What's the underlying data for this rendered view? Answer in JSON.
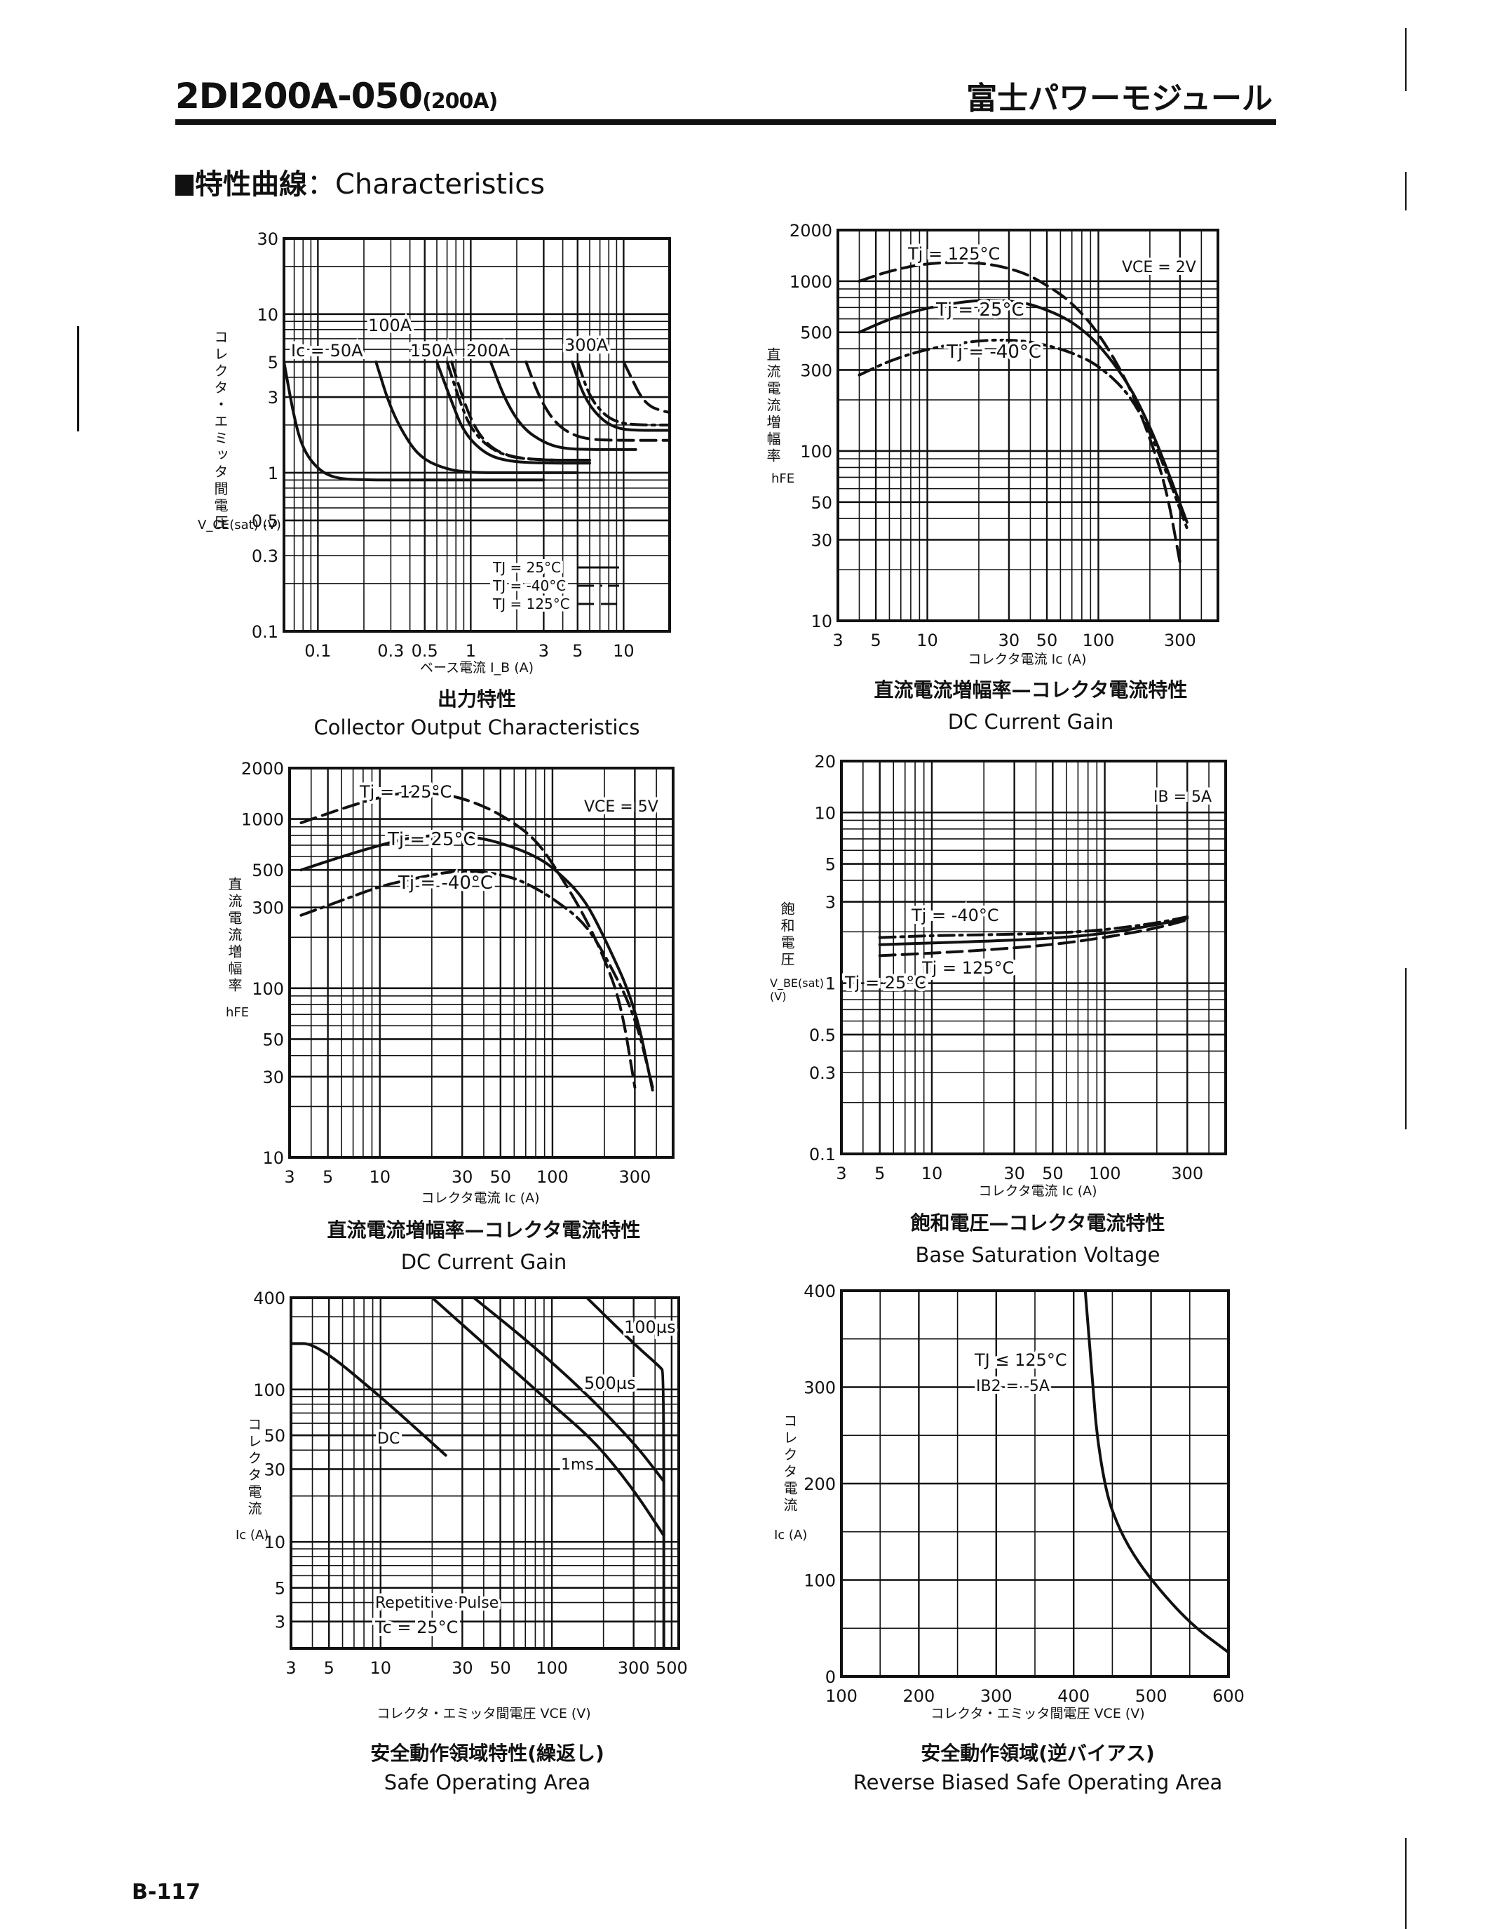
{
  "header": {
    "model": "2DI200A-050",
    "rating": "(200A)",
    "brand": "富士パワーモジュール"
  },
  "section": {
    "jp": "特性曲線",
    "sep": "：",
    "en": "Characteristics"
  },
  "footer": {
    "page": "B-117"
  },
  "chart_data": [
    {
      "id": "collector-output",
      "type": "line",
      "title_jp": "出力特性",
      "title": "Collector Output Characteristics",
      "xlabel": "ベース電流 I_B (A)",
      "ylabel_jp": "コレクタ・エミッタ間電圧",
      "ylabel": "V_CE(sat) (V)",
      "xscale": "log",
      "yscale": "log",
      "xlim": [
        0.06,
        20
      ],
      "ylim": [
        0.1,
        30
      ],
      "xticks": [
        0.1,
        0.3,
        0.5,
        1,
        3,
        5,
        10
      ],
      "xtick_labels": [
        "0.1",
        "0.3",
        "0.5",
        "1",
        "3",
        "5",
        "10"
      ],
      "yticks": [
        0.1,
        0.3,
        0.5,
        1,
        3,
        5,
        10,
        30
      ],
      "ytick_labels": [
        "0.1",
        "0.3",
        "0.5",
        "1",
        "3",
        "5",
        "10",
        "30"
      ],
      "legend": [
        {
          "label": "TJ = 25°C",
          "style": "solid"
        },
        {
          "label": "TJ = -40°C",
          "style": "dashdot"
        },
        {
          "label": "TJ = 125°C",
          "style": "dashed"
        }
      ],
      "annotations": [
        "Ic = 50A",
        "100A",
        "150A",
        "200A",
        "300A"
      ],
      "series": [
        {
          "name": "Ic=50A Tj=25°C",
          "style": "solid",
          "x": [
            0.06,
            0.07,
            0.08,
            0.1,
            0.13,
            0.2,
            0.5,
            1,
            3
          ],
          "y": [
            5,
            2.2,
            1.4,
            1.05,
            0.92,
            0.9,
            0.9,
            0.9,
            0.9
          ]
        },
        {
          "name": "Ic=100A Tj=25°C",
          "style": "solid",
          "x": [
            0.24,
            0.3,
            0.4,
            0.5,
            0.7,
            1,
            2,
            5
          ],
          "y": [
            5,
            2.5,
            1.5,
            1.2,
            1.05,
            1.0,
            1.0,
            1.0
          ]
        },
        {
          "name": "Ic=150A Tj=25°C",
          "style": "solid",
          "x": [
            0.6,
            0.75,
            0.9,
            1.2,
            1.6,
            2.5,
            6
          ],
          "y": [
            5,
            2.8,
            1.8,
            1.35,
            1.2,
            1.15,
            1.15
          ]
        },
        {
          "name": "Ic=150A Tj=-40°C",
          "style": "dashdot",
          "x": [
            0.7,
            0.85,
            1.0,
            1.3,
            1.8,
            3,
            6
          ],
          "y": [
            5,
            2.8,
            1.9,
            1.45,
            1.25,
            1.2,
            1.2
          ]
        },
        {
          "name": "Ic=150A Tj=125°C",
          "style": "dashed",
          "x": [
            0.75,
            0.9,
            1.1,
            1.4,
            1.9,
            3,
            6
          ],
          "y": [
            5,
            2.8,
            1.8,
            1.4,
            1.25,
            1.2,
            1.2
          ]
        },
        {
          "name": "Ic=200A Tj=25°C",
          "style": "solid",
          "x": [
            1.35,
            1.7,
            2.2,
            3,
            4,
            6,
            12
          ],
          "y": [
            5,
            2.8,
            1.9,
            1.55,
            1.42,
            1.4,
            1.4
          ]
        },
        {
          "name": "Ic=200A Tj=125°C",
          "style": "dashed",
          "x": [
            2.3,
            2.8,
            3.5,
            4.5,
            6,
            9,
            20
          ],
          "y": [
            5,
            3.0,
            2.1,
            1.75,
            1.62,
            1.6,
            1.6
          ]
        },
        {
          "name": "Ic=300A Tj=25°C",
          "style": "solid",
          "x": [
            4.6,
            5.5,
            7,
            9,
            12,
            20
          ],
          "y": [
            5,
            3.0,
            2.2,
            1.9,
            1.85,
            1.85
          ]
        },
        {
          "name": "Ic=300A Tj=-40°C",
          "style": "dashdot",
          "x": [
            5.0,
            6.0,
            7.5,
            9.5,
            13,
            20
          ],
          "y": [
            5,
            3.0,
            2.3,
            2.05,
            2.0,
            2.0
          ]
        },
        {
          "name": "Ic=300A Tj=125°C",
          "style": "dashed",
          "x": [
            10,
            11.5,
            13,
            15,
            18,
            20
          ],
          "y": [
            5,
            3.8,
            3.0,
            2.6,
            2.45,
            2.4
          ]
        }
      ]
    },
    {
      "id": "dc-current-gain-2v",
      "type": "line",
      "title_jp": "直流電流増幅率—コレクタ電流特性",
      "title": "DC Current Gain",
      "xlabel": "コレクタ電流 Ic (A)",
      "ylabel_jp": "直流電流増幅率",
      "ylabel": "hFE",
      "condition": "VCE = 2V",
      "xscale": "log",
      "yscale": "log",
      "xlim": [
        3,
        500
      ],
      "ylim": [
        10,
        2000
      ],
      "xticks": [
        3,
        5,
        10,
        30,
        50,
        100,
        300
      ],
      "xtick_labels": [
        "3",
        "5",
        "10",
        "30",
        "50",
        "100",
        "300"
      ],
      "yticks": [
        10,
        30,
        50,
        100,
        300,
        500,
        1000,
        2000
      ],
      "ytick_labels": [
        "10",
        "30",
        "50",
        "100",
        "300",
        "500",
        "1000",
        "2000"
      ],
      "series": [
        {
          "name": "Tj = 125°C",
          "style": "dashed",
          "x": [
            4,
            6,
            10,
            20,
            35,
            50,
            70,
            100,
            150,
            200,
            250,
            300
          ],
          "y": [
            1000,
            1150,
            1280,
            1300,
            1150,
            950,
            750,
            500,
            250,
            120,
            60,
            22
          ]
        },
        {
          "name": "Tj = 25°C",
          "style": "solid",
          "x": [
            4,
            6,
            10,
            20,
            35,
            50,
            70,
            100,
            150,
            200,
            250,
            330
          ],
          "y": [
            500,
            600,
            700,
            780,
            760,
            680,
            580,
            430,
            250,
            140,
            80,
            38
          ]
        },
        {
          "name": "Tj = -40°C",
          "style": "dashdot",
          "x": [
            4,
            6,
            10,
            20,
            35,
            50,
            70,
            100,
            150,
            200,
            250,
            330
          ],
          "y": [
            280,
            340,
            400,
            450,
            450,
            420,
            380,
            320,
            220,
            130,
            75,
            35
          ]
        }
      ]
    },
    {
      "id": "dc-current-gain-5v",
      "type": "line",
      "title_jp": "直流電流増幅率—コレクタ電流特性",
      "title": "DC Current Gain",
      "xlabel": "コレクタ電流 Ic (A)",
      "ylabel_jp": "直流電流増幅率",
      "ylabel": "hFE",
      "condition": "VCE = 5V",
      "xscale": "log",
      "yscale": "log",
      "xlim": [
        3,
        500
      ],
      "ylim": [
        10,
        2000
      ],
      "xticks": [
        3,
        5,
        10,
        30,
        50,
        100,
        300
      ],
      "xtick_labels": [
        "3",
        "5",
        "10",
        "30",
        "50",
        "100",
        "300"
      ],
      "yticks": [
        10,
        30,
        50,
        100,
        300,
        500,
        1000,
        2000
      ],
      "ytick_labels": [
        "10",
        "30",
        "50",
        "100",
        "300",
        "500",
        "1000",
        "2000"
      ],
      "series": [
        {
          "name": "Tj = 125°C",
          "style": "dashed",
          "x": [
            3.5,
            6,
            10,
            15,
            25,
            40,
            60,
            80,
            100,
            150,
            200,
            250,
            300
          ],
          "y": [
            950,
            1150,
            1350,
            1450,
            1400,
            1200,
            950,
            750,
            550,
            280,
            150,
            80,
            26
          ]
        },
        {
          "name": "Tj = 25°C",
          "style": "solid",
          "x": [
            3.5,
            6,
            10,
            15,
            25,
            40,
            60,
            80,
            100,
            150,
            200,
            300,
            380
          ],
          "y": [
            500,
            600,
            700,
            780,
            810,
            770,
            680,
            600,
            520,
            350,
            200,
            80,
            25
          ]
        },
        {
          "name": "Tj = -40°C",
          "style": "dashdot",
          "x": [
            3.5,
            6,
            10,
            15,
            25,
            40,
            60,
            80,
            100,
            150,
            200,
            300,
            380
          ],
          "y": [
            270,
            330,
            400,
            440,
            490,
            490,
            450,
            390,
            340,
            250,
            160,
            70,
            26
          ]
        }
      ]
    },
    {
      "id": "base-saturation-voltage",
      "type": "line",
      "title_jp": "飽和電圧—コレクタ電流特性",
      "title": "Base Saturation Voltage",
      "xlabel": "コレクタ電流 Ic (A)",
      "ylabel_jp": "飽和電圧",
      "ylabel": "V_BE(sat) (V)",
      "condition": "IB = 5A",
      "xscale": "log",
      "yscale": "log",
      "xlim": [
        3,
        500
      ],
      "ylim": [
        0.1,
        20
      ],
      "xticks": [
        3,
        5,
        10,
        30,
        50,
        100,
        300
      ],
      "xtick_labels": [
        "3",
        "5",
        "10",
        "30",
        "50",
        "100",
        "300"
      ],
      "yticks": [
        0.1,
        0.3,
        0.5,
        1,
        3,
        5,
        10,
        20
      ],
      "ytick_labels": [
        "0.1",
        "0.3",
        "0.5",
        "1",
        "3",
        "5",
        "10",
        "20"
      ],
      "series": [
        {
          "name": "Tj = -40°C",
          "style": "dashdot",
          "x": [
            5,
            10,
            20,
            50,
            100,
            200,
            300
          ],
          "y": [
            1.85,
            1.9,
            1.92,
            1.96,
            2.05,
            2.25,
            2.45
          ]
        },
        {
          "name": "Tj = 25°C",
          "style": "solid",
          "x": [
            5,
            10,
            20,
            50,
            100,
            200,
            300
          ],
          "y": [
            1.68,
            1.72,
            1.76,
            1.83,
            1.95,
            2.2,
            2.4
          ]
        },
        {
          "name": "Tj = 125°C",
          "style": "dashed",
          "x": [
            5,
            10,
            20,
            50,
            100,
            200,
            300
          ],
          "y": [
            1.45,
            1.5,
            1.56,
            1.68,
            1.85,
            2.1,
            2.35
          ]
        }
      ]
    },
    {
      "id": "safe-operating-area",
      "type": "line",
      "title_jp": "安全動作領域特性(繰返し)",
      "title": "Safe Operating Area",
      "xlabel": "コレクタ・エミッタ間電圧 VCE (V)",
      "ylabel_jp": "コレクタ電流",
      "ylabel": "Ic (A)",
      "conditions": [
        "Repetitive Pulse",
        "Tc = 25°C"
      ],
      "xscale": "log",
      "yscale": "log",
      "xlim": [
        3,
        550
      ],
      "ylim": [
        2,
        400
      ],
      "xticks": [
        3,
        5,
        10,
        30,
        50,
        100,
        300,
        500
      ],
      "xtick_labels": [
        "3",
        "5",
        "10",
        "30",
        "50",
        "100",
        "300",
        "500"
      ],
      "yticks": [
        3,
        5,
        10,
        30,
        50,
        100,
        400
      ],
      "ytick_labels": [
        "3",
        "5",
        "10",
        "30",
        "50",
        "100",
        "400"
      ],
      "series": [
        {
          "name": "DC",
          "style": "solid",
          "x": [
            3,
            4.2,
            10,
            24
          ],
          "y": [
            200,
            200,
            90,
            37
          ]
        },
        {
          "name": "1ms",
          "style": "solid",
          "x": [
            20,
            40,
            100,
            180,
            300,
            450
          ],
          "y": [
            400,
            200,
            80,
            45,
            22,
            11
          ]
        },
        {
          "name": "500µs",
          "style": "solid",
          "x": [
            35,
            75,
            150,
            300,
            450
          ],
          "y": [
            400,
            200,
            100,
            45,
            25
          ]
        },
        {
          "name": "100µs",
          "style": "solid",
          "x": [
            160,
            300,
            430,
            450,
            450
          ],
          "y": [
            400,
            200,
            140,
            130,
            2
          ]
        }
      ]
    },
    {
      "id": "reverse-biased-soa",
      "type": "line",
      "title_jp": "安全動作領域(逆バイアス)",
      "title": "Reverse Biased Safe Operating Area",
      "xlabel": "コレクタ・エミッタ間電圧 VCE (V)",
      "ylabel_jp": "コレクタ電流",
      "ylabel": "Ic (A)",
      "conditions": [
        "TJ ≤ 125°C",
        "IB2 = -5A"
      ],
      "xscale": "linear",
      "yscale": "linear",
      "xlim": [
        100,
        600
      ],
      "ylim": [
        0,
        400
      ],
      "xticks": [
        100,
        200,
        300,
        400,
        500,
        600
      ],
      "xtick_labels": [
        "100",
        "200",
        "300",
        "400",
        "500",
        "600"
      ],
      "yticks": [
        0,
        100,
        200,
        300,
        400
      ],
      "ytick_labels": [
        "0",
        "100",
        "200",
        "300",
        "400"
      ],
      "series": [
        {
          "name": "RBSOA",
          "style": "solid",
          "x": [
            415,
            420,
            425,
            430,
            440,
            450,
            470,
            500,
            550,
            600
          ],
          "y": [
            400,
            350,
            300,
            250,
            200,
            170,
            135,
            100,
            55,
            25
          ]
        }
      ]
    }
  ]
}
